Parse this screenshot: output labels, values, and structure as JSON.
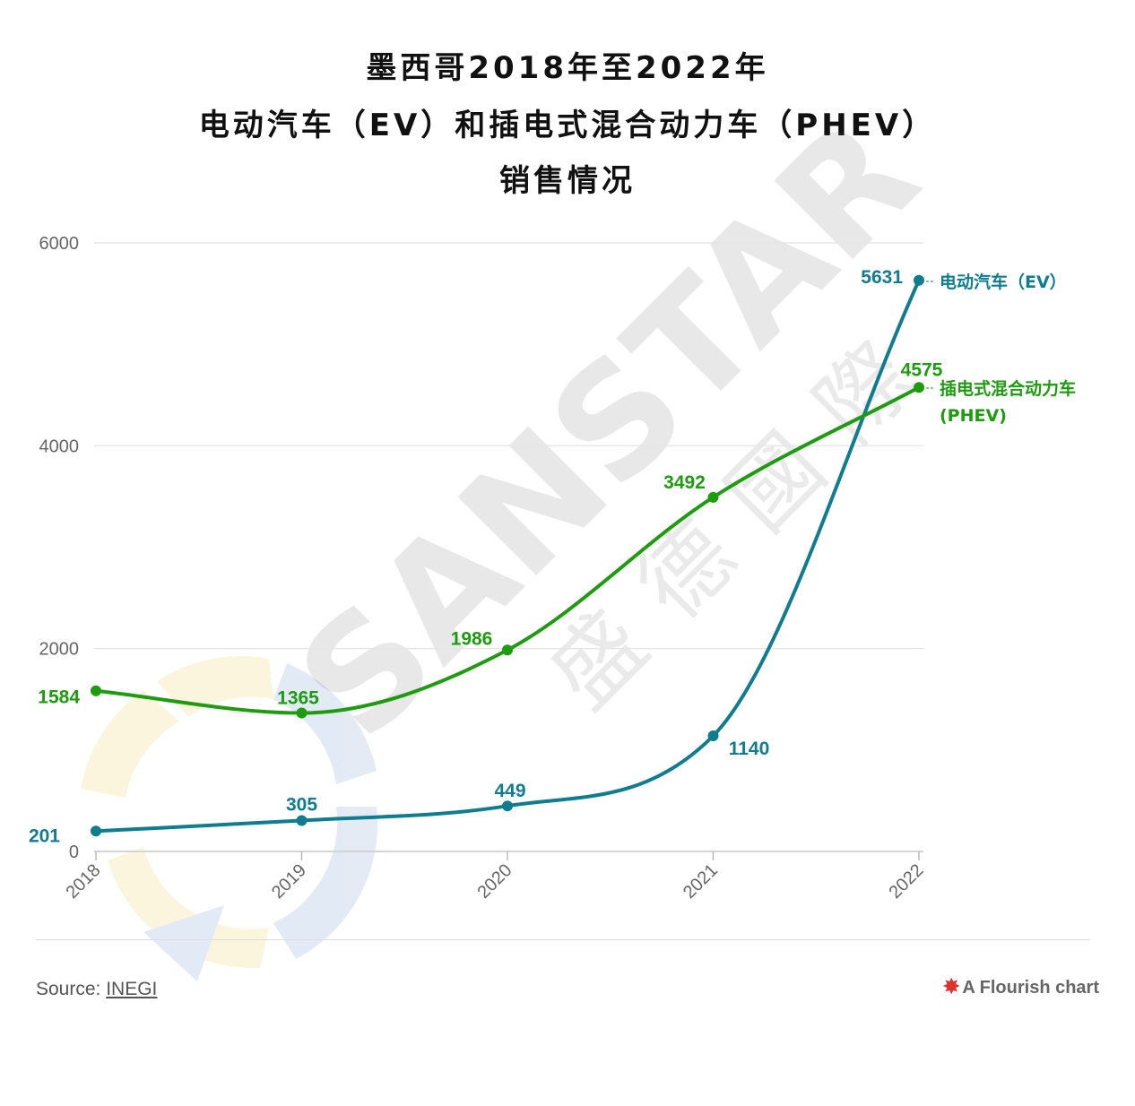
{
  "title": {
    "line1": "墨西哥2018年至2022年",
    "line2": "电动汽车（EV）和插电式混合动力车（PHEV）",
    "line3": "销售情况"
  },
  "colors": {
    "ev": "#0f7d8f",
    "phev": "#1e9b0f",
    "grid": "#e6e6e6",
    "axis": "#666666"
  },
  "watermark": {
    "text_en": "SANSTAR",
    "text_cn": "盛德國際"
  },
  "chart_data": {
    "type": "line",
    "x": [
      "2018",
      "2019",
      "2020",
      "2021",
      "2022"
    ],
    "ylim": [
      0,
      6000
    ],
    "yticks": [
      0,
      2000,
      4000,
      6000
    ],
    "legend": "inline-right",
    "grid": true,
    "series": [
      {
        "name": "电动汽车（EV）",
        "color": "#0f7d8f",
        "values": [
          201,
          305,
          449,
          1140,
          5631
        ]
      },
      {
        "name": "插电式混合动力车（PHEV）",
        "color": "#1e9b0f",
        "values": [
          1584,
          1365,
          1986,
          3492,
          4575
        ]
      }
    ]
  },
  "series_labels": {
    "ev": "电动汽车（EV）",
    "phev_line1": "插电式混合动力车",
    "phev_line2": "(PHEV)"
  },
  "footer": {
    "source_prefix": "Source: ",
    "source_link": "INEGI",
    "brand": "A Flourish chart"
  }
}
